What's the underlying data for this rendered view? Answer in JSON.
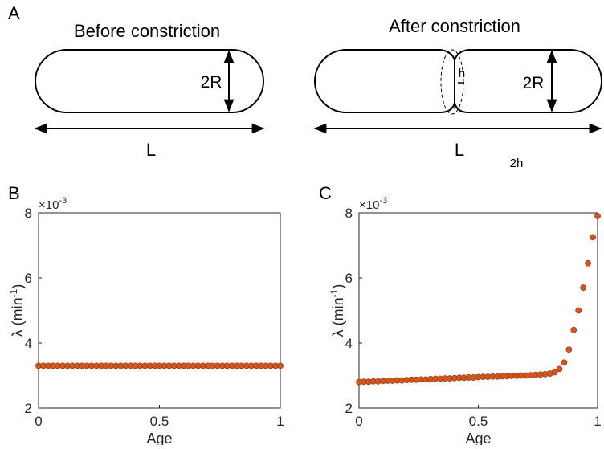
{
  "panels": {
    "a": "A",
    "b": "B",
    "c": "C"
  },
  "diagram": {
    "before": {
      "title": "Before constriction",
      "radius_label": "2R",
      "length_label": "L"
    },
    "after": {
      "title": "After constriction",
      "neck_label": "h",
      "radius_label": "2R",
      "length_label": "L",
      "neck_width_label": "2h"
    }
  },
  "chart_data": [
    {
      "type": "scatter",
      "xlabel": "Age",
      "ylabel": "λ (min",
      "ylabel_sup": "-1",
      "ylabel_end": ")",
      "y_exponent_base": "×10",
      "y_exponent_power": "-3",
      "color": "#d95319",
      "xlim": [
        0,
        1
      ],
      "xticks": [
        0,
        0.5,
        1
      ],
      "ylim": [
        0.002,
        0.008
      ],
      "yticks": [
        {
          "value": 0.002,
          "label": "2"
        },
        {
          "value": 0.004,
          "label": "4"
        },
        {
          "value": 0.006,
          "label": "6"
        },
        {
          "value": 0.008,
          "label": "8"
        }
      ],
      "x": [
        0,
        0.02,
        0.04,
        0.06,
        0.08,
        0.1,
        0.12,
        0.14,
        0.16,
        0.18,
        0.2,
        0.22,
        0.24,
        0.26,
        0.28,
        0.3,
        0.32,
        0.34,
        0.36,
        0.38,
        0.4,
        0.42,
        0.44,
        0.46,
        0.48,
        0.5,
        0.52,
        0.54,
        0.56,
        0.58,
        0.6,
        0.62,
        0.64,
        0.66,
        0.68,
        0.7,
        0.72,
        0.74,
        0.76,
        0.78,
        0.8,
        0.82,
        0.84,
        0.86,
        0.88,
        0.9,
        0.92,
        0.94,
        0.96,
        0.98,
        1
      ],
      "values": [
        0.0033,
        0.0033,
        0.0033,
        0.0033,
        0.0033,
        0.0033,
        0.0033,
        0.0033,
        0.0033,
        0.0033,
        0.0033,
        0.0033,
        0.0033,
        0.0033,
        0.0033,
        0.0033,
        0.0033,
        0.0033,
        0.0033,
        0.0033,
        0.0033,
        0.0033,
        0.0033,
        0.0033,
        0.0033,
        0.0033,
        0.0033,
        0.0033,
        0.0033,
        0.0033,
        0.0033,
        0.0033,
        0.0033,
        0.0033,
        0.0033,
        0.0033,
        0.0033,
        0.0033,
        0.0033,
        0.0033,
        0.0033,
        0.0033,
        0.0033,
        0.0033,
        0.0033,
        0.0033,
        0.0033,
        0.0033,
        0.0033,
        0.0033,
        0.0033
      ]
    },
    {
      "type": "scatter",
      "xlabel": "Age",
      "ylabel": "λ (min",
      "ylabel_sup": "-1",
      "ylabel_end": ")",
      "y_exponent_base": "×10",
      "y_exponent_power": "-3",
      "color": "#d95319",
      "xlim": [
        0,
        1
      ],
      "xticks": [
        0,
        0.5,
        1
      ],
      "ylim": [
        0.002,
        0.008
      ],
      "yticks": [
        {
          "value": 0.002,
          "label": "2"
        },
        {
          "value": 0.004,
          "label": "4"
        },
        {
          "value": 0.006,
          "label": "6"
        },
        {
          "value": 0.008,
          "label": "8"
        }
      ],
      "x": [
        0,
        0.02,
        0.04,
        0.06,
        0.08,
        0.1,
        0.12,
        0.14,
        0.16,
        0.18,
        0.2,
        0.22,
        0.24,
        0.26,
        0.28,
        0.3,
        0.32,
        0.34,
        0.36,
        0.38,
        0.4,
        0.42,
        0.44,
        0.46,
        0.48,
        0.5,
        0.52,
        0.54,
        0.56,
        0.58,
        0.6,
        0.62,
        0.64,
        0.66,
        0.68,
        0.7,
        0.72,
        0.74,
        0.76,
        0.78,
        0.8,
        0.82,
        0.84,
        0.86,
        0.88,
        0.9,
        0.92,
        0.94,
        0.96,
        0.98,
        1
      ],
      "values": [
        0.0028,
        0.00281,
        0.00281,
        0.00282,
        0.00282,
        0.00283,
        0.00284,
        0.00284,
        0.00285,
        0.00285,
        0.00286,
        0.00287,
        0.00287,
        0.00288,
        0.00288,
        0.00289,
        0.0029,
        0.0029,
        0.00291,
        0.00291,
        0.00292,
        0.00293,
        0.00293,
        0.00294,
        0.00294,
        0.00295,
        0.00296,
        0.00296,
        0.00297,
        0.00297,
        0.00298,
        0.00298,
        0.00299,
        0.00299,
        0.003,
        0.003,
        0.00301,
        0.00302,
        0.00303,
        0.00304,
        0.00306,
        0.0031,
        0.0032,
        0.0034,
        0.0038,
        0.0044,
        0.005,
        0.0057,
        0.00645,
        0.00725,
        0.0079
      ]
    }
  ]
}
